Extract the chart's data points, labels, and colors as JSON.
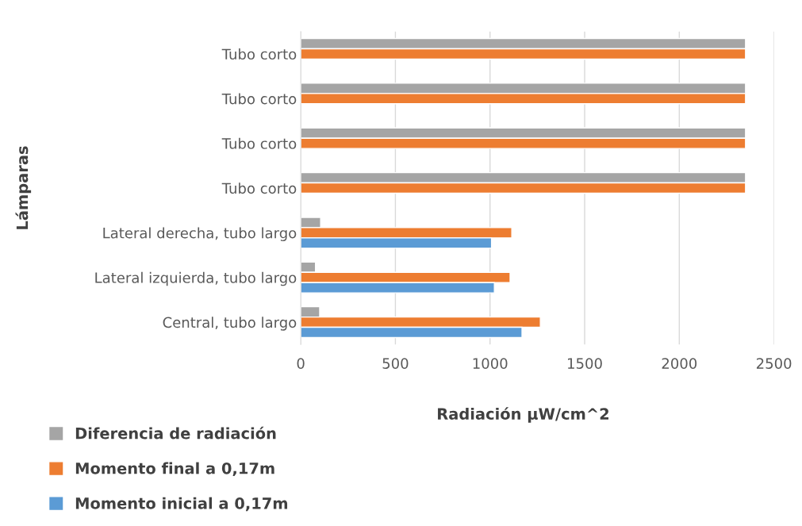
{
  "chart_data": {
    "type": "bar",
    "orientation": "horizontal",
    "categories": [
      "Tubo corto",
      "Tubo corto",
      "Tubo corto",
      "Tubo corto",
      "Lateral derecha, tubo largo",
      "Lateral izquierda, tubo largo",
      "Central, tubo largo"
    ],
    "series": [
      {
        "name": "Diferencia de radiación",
        "color": "#a5a5a5",
        "values": [
          2350,
          2350,
          2350,
          2350,
          105,
          78,
          100
        ]
      },
      {
        "name": "Momento final a 0,17m",
        "color": "#ed7d31",
        "values": [
          2350,
          2350,
          2350,
          2350,
          1115,
          1106,
          1266
        ]
      },
      {
        "name": "Momento inicial a 0,17m",
        "color": "#5b9bd5",
        "values": [
          null,
          null,
          null,
          null,
          1008,
          1023,
          1169
        ]
      }
    ],
    "xlabel": "Radiación μW/cm^2",
    "ylabel": "Lámparas",
    "xlim": [
      0,
      2500
    ],
    "xticks": [
      0,
      500,
      1000,
      1500,
      2000,
      2500
    ],
    "grid": "x",
    "legend": "bottom left"
  }
}
